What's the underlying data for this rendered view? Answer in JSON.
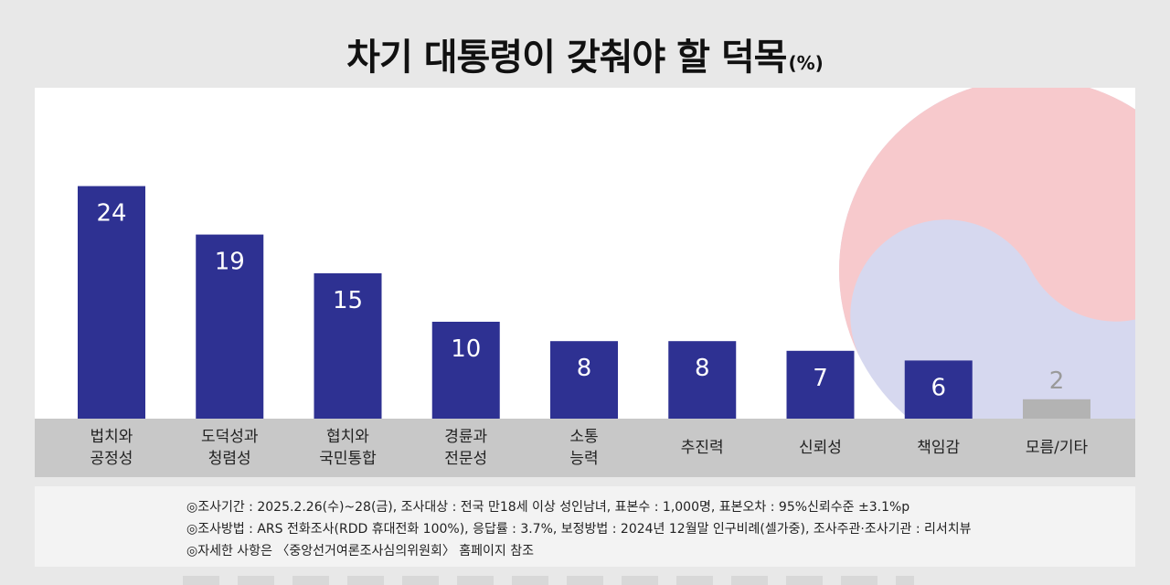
{
  "title": "차기 대통령이 갖춰야 할 덕목",
  "title_unit": "(%)",
  "colors": {
    "bar": "#2e3192",
    "bar_muted": "#b3b3b3",
    "label_muted": "#9a9a9a",
    "red": "#f7c9cc",
    "blue": "#d6d8ef"
  },
  "chart_data": {
    "type": "bar",
    "title": "차기 대통령이 갖춰야 할 덕목",
    "unit": "%",
    "categories": [
      "법치와\n공정성",
      "도덕성과\n청렴성",
      "협치와\n국민통합",
      "경륜과\n전문성",
      "소통\n능력",
      "추진력",
      "신뢰성",
      "책임감",
      "모름/기타"
    ],
    "values": [
      24,
      19,
      15,
      10,
      8,
      8,
      7,
      6,
      2
    ],
    "ylim": [
      0,
      32
    ],
    "grid": false,
    "legend": "none"
  },
  "notes": [
    "◎조사기간 : 2025.2.26(수)~28(금), 조사대상 : 전국 만18세 이상 성인남녀, 표본수 : 1,000명, 표본오차 : 95%신뢰수준 ±3.1%p",
    "◎조사방법 : ARS 전화조사(RDD 휴대전화 100%), 응답률 : 3.7%, 보정방법 : 2024년 12월말 인구비례(셀가중), 조사주관·조사기관 : 리서치뷰",
    "◎자세한 사항은 〈중앙선거여론조사심의위원회〉 홈페이지 참조"
  ]
}
